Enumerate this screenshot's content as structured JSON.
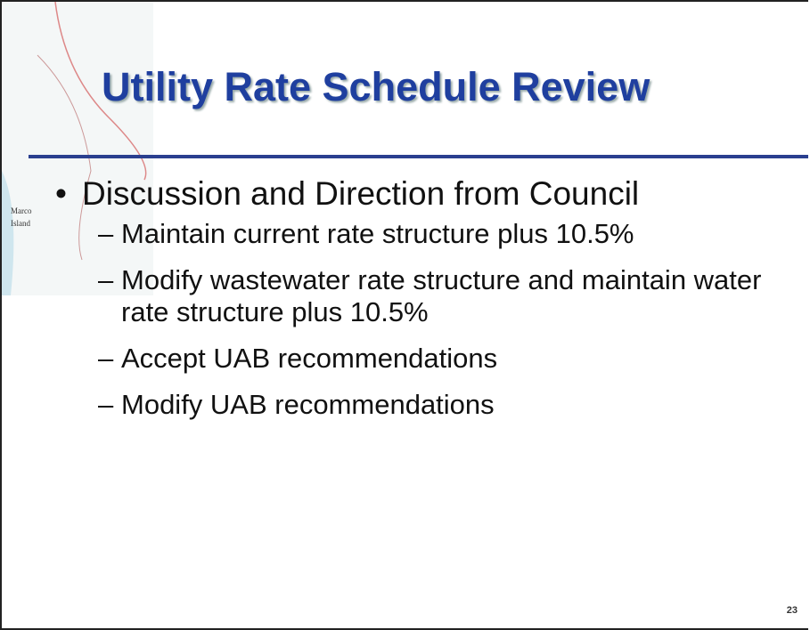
{
  "title": "Utility Rate Schedule Review",
  "map_labels": [
    "Marco",
    "Island"
  ],
  "bullets": [
    {
      "text": "Discussion and Direction from Council",
      "items": [
        "Maintain current rate structure plus 10.5%",
        "Modify wastewater rate structure and maintain water rate structure plus 10.5%",
        "Accept UAB recommendations",
        "Modify UAB recommendations"
      ]
    }
  ],
  "page_number": "23"
}
